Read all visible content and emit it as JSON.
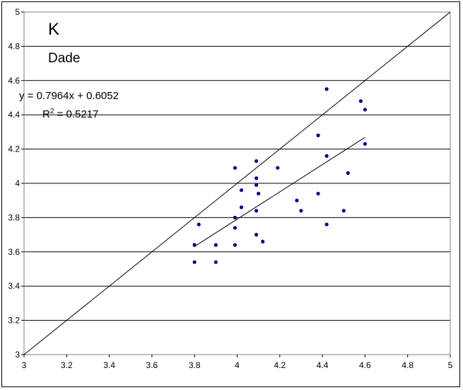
{
  "chart_data": {
    "type": "scatter",
    "title": "K",
    "subtitle": "Dade",
    "xlabel": "",
    "ylabel": "",
    "xlim": [
      3,
      5
    ],
    "ylim": [
      3,
      5
    ],
    "xticks": [
      "3",
      "3.2",
      "3.4",
      "3.6",
      "3.8",
      "4",
      "4.2",
      "4.4",
      "4.6",
      "4.8",
      "5"
    ],
    "yticks": [
      "3",
      "3.2",
      "3.4",
      "3.6",
      "3.8",
      "4",
      "4.2",
      "4.4",
      "4.6",
      "4.8",
      "5"
    ],
    "grid": "horizontal",
    "marker_color": "#000080",
    "points": [
      {
        "x": 3.8,
        "y": 3.64
      },
      {
        "x": 3.8,
        "y": 3.54
      },
      {
        "x": 3.82,
        "y": 3.76
      },
      {
        "x": 3.9,
        "y": 3.64
      },
      {
        "x": 3.9,
        "y": 3.54
      },
      {
        "x": 3.99,
        "y": 4.09
      },
      {
        "x": 3.99,
        "y": 3.8
      },
      {
        "x": 3.99,
        "y": 3.74
      },
      {
        "x": 3.99,
        "y": 3.64
      },
      {
        "x": 4.02,
        "y": 3.96
      },
      {
        "x": 4.02,
        "y": 3.86
      },
      {
        "x": 4.09,
        "y": 4.13
      },
      {
        "x": 4.09,
        "y": 4.03
      },
      {
        "x": 4.09,
        "y": 3.99
      },
      {
        "x": 4.1,
        "y": 3.94
      },
      {
        "x": 4.09,
        "y": 3.84
      },
      {
        "x": 4.09,
        "y": 3.7
      },
      {
        "x": 4.12,
        "y": 3.66
      },
      {
        "x": 4.19,
        "y": 4.09
      },
      {
        "x": 4.28,
        "y": 3.9
      },
      {
        "x": 4.3,
        "y": 3.84
      },
      {
        "x": 4.38,
        "y": 4.28
      },
      {
        "x": 4.38,
        "y": 3.94
      },
      {
        "x": 4.42,
        "y": 4.55
      },
      {
        "x": 4.42,
        "y": 4.16
      },
      {
        "x": 4.42,
        "y": 3.76
      },
      {
        "x": 4.5,
        "y": 3.84
      },
      {
        "x": 4.52,
        "y": 4.06
      },
      {
        "x": 4.58,
        "y": 4.48
      },
      {
        "x": 4.6,
        "y": 4.43
      },
      {
        "x": 4.6,
        "y": 4.23
      }
    ],
    "trendline": {
      "slope": 0.7964,
      "intercept": 0.6052,
      "x_range": [
        3.8,
        4.6
      ],
      "equation_label": "y = 0.7964x + 0.6052",
      "r2_prefix": "R",
      "r2_sup": "2",
      "r2_value": " = 0.5217"
    },
    "reference_line": {
      "from": [
        3,
        3
      ],
      "to": [
        5,
        5
      ]
    }
  }
}
